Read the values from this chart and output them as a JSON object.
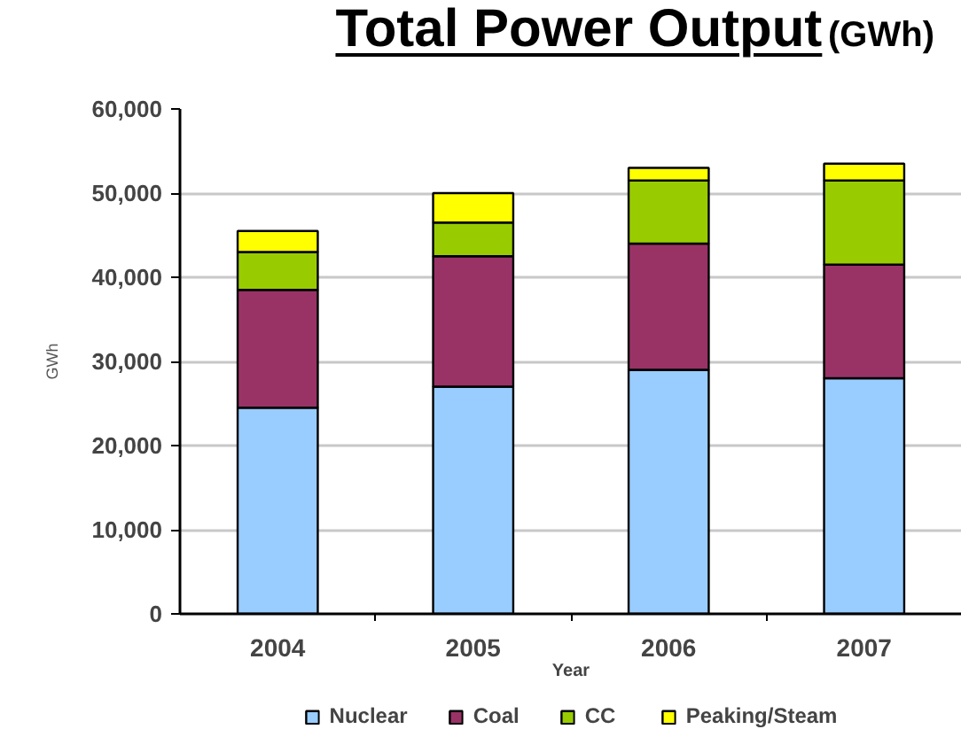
{
  "chart_data": {
    "type": "bar",
    "title": "Total Power Output",
    "subtitle": "(GWh)",
    "xlabel": "Year",
    "ylabel": "GWh",
    "categories": [
      "2004",
      "2005",
      "2006",
      "2007"
    ],
    "stacked": true,
    "series": [
      {
        "name": "Nuclear",
        "color": "#99ccff",
        "values": [
          24500,
          27000,
          29000,
          28000
        ]
      },
      {
        "name": "Coal",
        "color": "#993366",
        "values": [
          14000,
          15500,
          15000,
          13500
        ]
      },
      {
        "name": "CC",
        "color": "#99cc00",
        "values": [
          4500,
          4000,
          7500,
          10000
        ]
      },
      {
        "name": "Peaking/Steam",
        "color": "#ffff00",
        "values": [
          2500,
          3500,
          1500,
          2000
        ]
      }
    ],
    "ylim": [
      0,
      60000
    ],
    "yticks": [
      0,
      {
        "value": 10000,
        "label": "10,000"
      },
      {
        "value": 20000,
        "label": "20,000"
      },
      {
        "value": 30000,
        "label": "30,000"
      },
      {
        "value": 40000,
        "label": "40,000"
      },
      {
        "value": 50000,
        "label": "50,000"
      },
      {
        "value": 60000,
        "label": "60,000"
      }
    ],
    "grid": "y",
    "legend": "bottom"
  }
}
